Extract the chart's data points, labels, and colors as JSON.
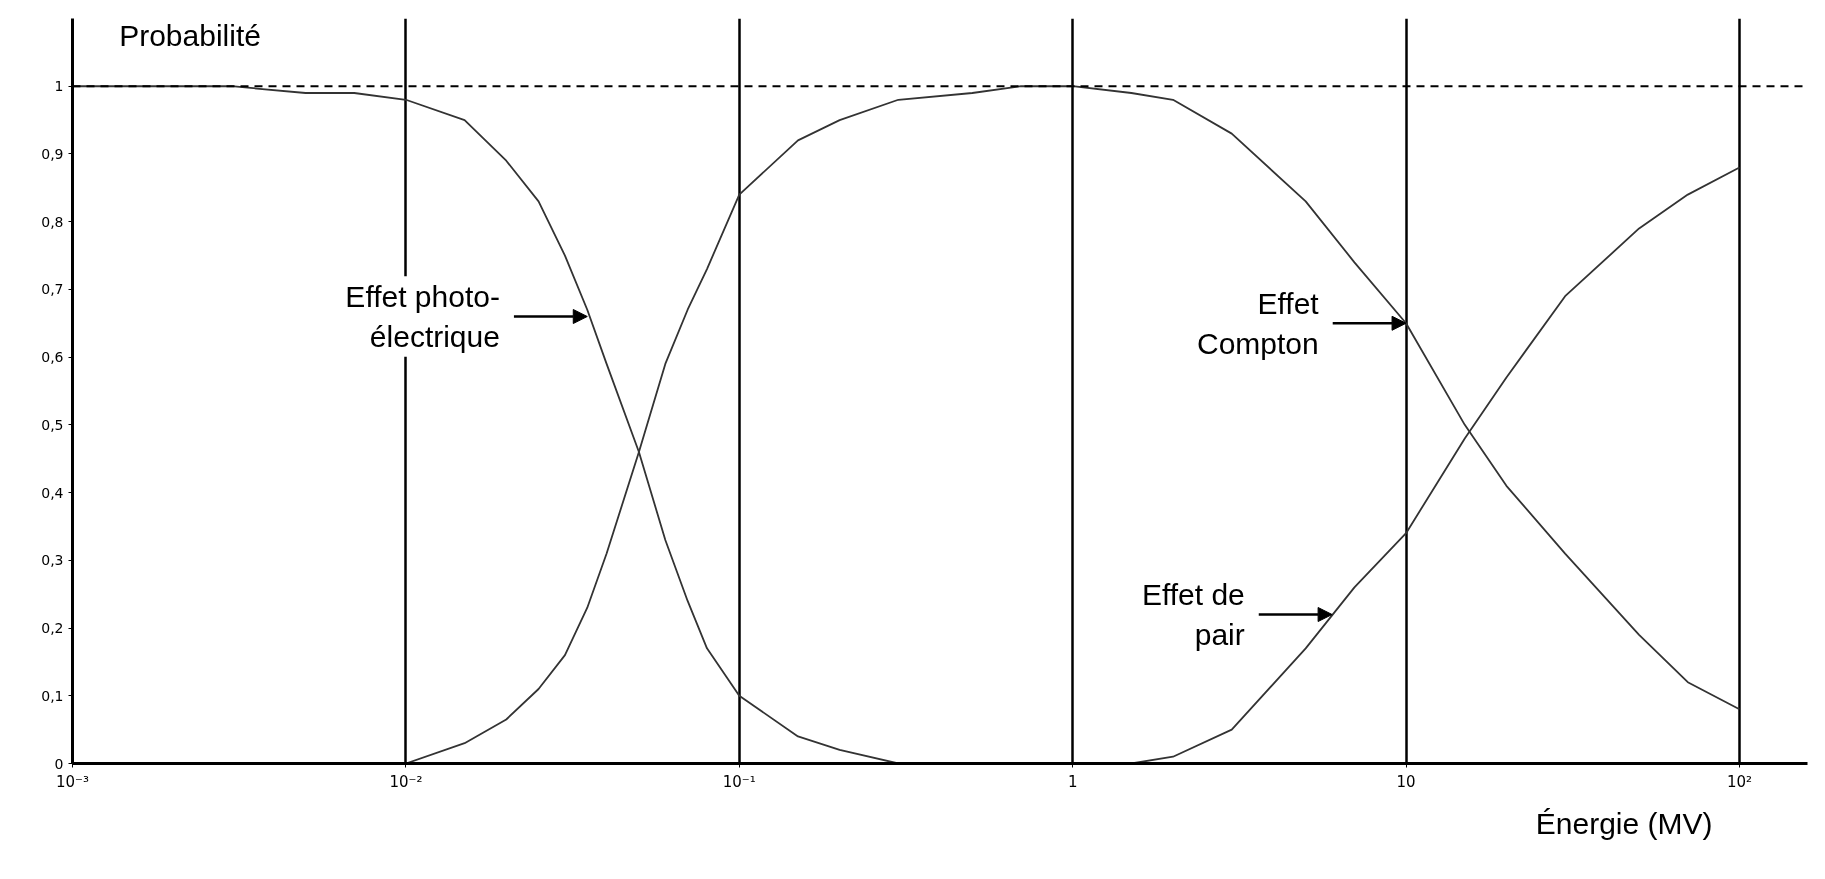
{
  "chart_data": {
    "type": "line",
    "xlabel": "Énergie (MV)",
    "ylabel": "Probabilité",
    "log": "x",
    "xlim": [
      0.001,
      160
    ],
    "ylim": [
      0,
      1.1
    ],
    "xticks": [
      {
        "value": 0.001,
        "label": "10⁻³"
      },
      {
        "value": 0.01,
        "label": "10⁻²"
      },
      {
        "value": 0.1,
        "label": "10⁻¹"
      },
      1,
      10,
      {
        "value": 100,
        "label": "10²"
      }
    ],
    "yticks": [
      0,
      {
        "value": 0.1,
        "label": "0,1"
      },
      {
        "value": 0.2,
        "label": "0,2"
      },
      {
        "value": 0.3,
        "label": "0,3"
      },
      {
        "value": 0.4,
        "label": "0,4"
      },
      {
        "value": 0.5,
        "label": "0,5"
      },
      {
        "value": 0.6,
        "label": "0,6"
      },
      {
        "value": 0.7,
        "label": "0,7"
      },
      {
        "value": 0.8,
        "label": "0,8"
      },
      {
        "value": 0.9,
        "label": "0,9"
      },
      1
    ],
    "grid": "x",
    "line_style": "solid",
    "ref_lines": [
      {
        "axis": "y",
        "value": 1,
        "line_style": "dashed",
        "color": "#000000"
      }
    ],
    "annotations": [
      {
        "text": "Effet photo-\nélectrique",
        "x": 0.035,
        "y": 0.66
      },
      {
        "text": "Effet\nCompton",
        "x": 10,
        "y": 0.65
      },
      {
        "text": "Effet de\npair",
        "x": 6,
        "y": 0.22
      }
    ],
    "series": [
      {
        "color": "#333333",
        "x": [
          0.001,
          0.002,
          0.003,
          0.005,
          0.007,
          0.01,
          0.015,
          0.02,
          0.025,
          0.03,
          0.035,
          0.04,
          0.05,
          0.06,
          0.07,
          0.08,
          0.1,
          0.15,
          0.2,
          0.3
        ],
        "values": [
          1,
          1,
          1,
          0.99,
          0.99,
          0.98,
          0.95,
          0.89,
          0.83,
          0.75,
          0.67,
          0.59,
          0.46,
          0.33,
          0.24,
          0.17,
          0.1,
          0.04,
          0.02,
          0
        ]
      },
      {
        "color": "#333333",
        "x": [
          0.01,
          0.015,
          0.02,
          0.025,
          0.03,
          0.035,
          0.04,
          0.05,
          0.06,
          0.07,
          0.08,
          0.1,
          0.15,
          0.2,
          0.3,
          0.5,
          0.7,
          1,
          1.5,
          2,
          3,
          5,
          7,
          10,
          15,
          20,
          30,
          50,
          70,
          100
        ],
        "values": [
          0,
          0.03,
          0.065,
          0.11,
          0.16,
          0.23,
          0.31,
          0.46,
          0.59,
          0.67,
          0.73,
          0.84,
          0.92,
          0.95,
          0.98,
          0.99,
          1,
          1,
          0.99,
          0.98,
          0.93,
          0.83,
          0.74,
          0.65,
          0.5,
          0.41,
          0.31,
          0.19,
          0.12,
          0.08
        ]
      },
      {
        "color": "#333333",
        "x": [
          1.5,
          2,
          3,
          5,
          7,
          10,
          15,
          20,
          30,
          50,
          70,
          100
        ],
        "values": [
          0,
          0.01,
          0.05,
          0.17,
          0.26,
          0.34,
          0.48,
          0.57,
          0.69,
          0.79,
          0.84,
          0.88
        ]
      }
    ]
  }
}
